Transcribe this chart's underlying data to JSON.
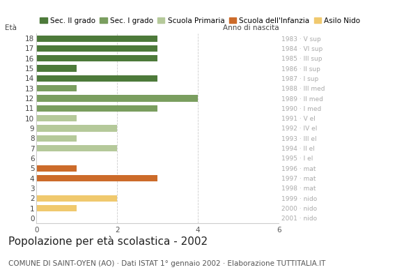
{
  "ages": [
    18,
    17,
    16,
    15,
    14,
    13,
    12,
    11,
    10,
    9,
    8,
    7,
    6,
    5,
    4,
    3,
    2,
    1,
    0
  ],
  "values": [
    3,
    3,
    3,
    1,
    3,
    1,
    4,
    3,
    1,
    2,
    1,
    2,
    0,
    1,
    3,
    0,
    2,
    1,
    0
  ],
  "right_labels": [
    "1983 · V sup",
    "1984 · VI sup",
    "1985 · III sup",
    "1986 · II sup",
    "1987 · I sup",
    "1988 · III med",
    "1989 · II med",
    "1990 · I med",
    "1991 · V el",
    "1992 · IV el",
    "1993 · III el",
    "1994 · II el",
    "1995 · I el",
    "1996 · mat",
    "1997 · mat",
    "1998 · mat",
    "1999 · nido",
    "2000 · nido",
    "2001 · nido"
  ],
  "categories": {
    "Sec. II grado": {
      "ages": [
        18,
        17,
        16,
        15,
        14
      ],
      "color": "#4d7a3a"
    },
    "Sec. I grado": {
      "ages": [
        13,
        12,
        11
      ],
      "color": "#7a9e5f"
    },
    "Scuola Primaria": {
      "ages": [
        10,
        9,
        8,
        7,
        6
      ],
      "color": "#b5c99a"
    },
    "Scuola dell'Infanzia": {
      "ages": [
        5,
        4,
        3
      ],
      "color": "#cc6b2a"
    },
    "Asilo Nido": {
      "ages": [
        2,
        1,
        0
      ],
      "color": "#f0c96e"
    }
  },
  "xlim": [
    0,
    6
  ],
  "xticks": [
    0,
    2,
    4,
    6
  ],
  "title": "Popolazione per età scolastica - 2002",
  "subtitle": "COMUNE DI SAINT-OYEN (AO) · Dati ISTAT 1° gennaio 2002 · Elaborazione TUTTITALIA.IT",
  "left_label": "Età",
  "right_header": "Anno di nascita",
  "legend_order": [
    "Sec. II grado",
    "Sec. I grado",
    "Scuola Primaria",
    "Scuola dell'Infanzia",
    "Asilo Nido"
  ],
  "bar_height": 0.65,
  "grid_color": "#cccccc",
  "bg_color": "#ffffff",
  "right_label_color": "#aaaaaa",
  "title_fontsize": 11,
  "subtitle_fontsize": 7.5,
  "axis_fontsize": 7.5,
  "legend_fontsize": 7.5
}
